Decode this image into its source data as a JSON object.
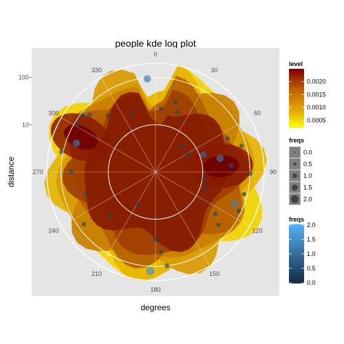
{
  "chart_data": {
    "type": "polar-density",
    "title": "people kde log plot",
    "xlabel": "degrees",
    "ylabel": "distance",
    "angle_ticks": [
      "0",
      "30",
      "60",
      "90",
      "120",
      "150",
      "180",
      "210",
      "240",
      "270",
      "300",
      "330"
    ],
    "angle_tick_values": [
      0,
      30,
      60,
      90,
      120,
      150,
      180,
      210,
      240,
      270,
      300,
      330
    ],
    "distance_ticks": [
      "100",
      "10"
    ],
    "distance_tick_values": [
      100,
      10
    ],
    "distance_log_range": [
      0,
      2.3
    ],
    "background": "#e5e5e5",
    "legends": {
      "level": {
        "title": "level",
        "labels": [
          "0.0020",
          "0.0015",
          "0.0010",
          "0.0005"
        ],
        "values": [
          0.002,
          0.0015,
          0.001,
          0.0005
        ],
        "range": [
          0.0002,
          0.0025
        ],
        "colors": [
          "#7a0000",
          "#c06000",
          "#e0a800",
          "#ffff00"
        ]
      },
      "freqs_size": {
        "title": "freqs",
        "labels": [
          "0.0",
          "0.5",
          "1.0",
          "1.5",
          "2.0"
        ]
      },
      "freqs_color": {
        "title": "freqs",
        "labels": [
          "2.0",
          "1.5",
          "1.0",
          "0.5",
          "0.0"
        ],
        "colors": [
          "#56b1f7",
          "#132b43"
        ]
      }
    },
    "points": [
      {
        "deg": 355,
        "dist": 95,
        "freq": 1.2
      },
      {
        "deg": 5,
        "dist": 22,
        "freq": 0.3
      },
      {
        "deg": 338,
        "dist": 22,
        "freq": 0.3
      },
      {
        "deg": 320,
        "dist": 36,
        "freq": 0.4
      },
      {
        "deg": 311,
        "dist": 70,
        "freq": 0.5
      },
      {
        "deg": 308,
        "dist": 90,
        "freq": 0.4
      },
      {
        "deg": 302,
        "dist": 85,
        "freq": 0.4
      },
      {
        "deg": 290,
        "dist": 60,
        "freq": 1.2
      },
      {
        "deg": 282,
        "dist": 110,
        "freq": 0.4
      },
      {
        "deg": 270,
        "dist": 60,
        "freq": 0.5
      },
      {
        "deg": 252,
        "dist": 35,
        "freq": 0.4
      },
      {
        "deg": 234,
        "dist": 75,
        "freq": 0.4
      },
      {
        "deg": 226,
        "dist": 22,
        "freq": 0.4
      },
      {
        "deg": 210,
        "dist": 6,
        "freq": 0.4
      },
      {
        "deg": 16,
        "dist": 35,
        "freq": 0.4
      },
      {
        "deg": 20,
        "dist": 22,
        "freq": 0.4
      },
      {
        "deg": 45,
        "dist": 6,
        "freq": 0.4
      },
      {
        "deg": 62,
        "dist": 6,
        "freq": 0.4
      },
      {
        "deg": 70,
        "dist": 12,
        "freq": 1.0
      },
      {
        "deg": 78,
        "dist": 25,
        "freq": 1.2
      },
      {
        "deg": 85,
        "dist": 40,
        "freq": 0.5
      },
      {
        "deg": 65,
        "dist": 48,
        "freq": 0.4
      },
      {
        "deg": 73,
        "dist": 80,
        "freq": 0.4
      },
      {
        "deg": 91,
        "dist": 100,
        "freq": 0.4
      },
      {
        "deg": 104,
        "dist": 85,
        "freq": 0.4
      },
      {
        "deg": 112,
        "dist": 63,
        "freq": 1.3
      },
      {
        "deg": 115,
        "dist": 88,
        "freq": 0.4
      },
      {
        "deg": 125,
        "dist": 35,
        "freq": 0.4
      },
      {
        "deg": 130,
        "dist": 55,
        "freq": 0.4
      },
      {
        "deg": 98,
        "dist": 11,
        "freq": 0.4
      },
      {
        "deg": 108,
        "dist": 13,
        "freq": 0.4
      },
      {
        "deg": 180,
        "dist": 27,
        "freq": 0.4
      },
      {
        "deg": 176,
        "dist": 50,
        "freq": 0.4
      },
      {
        "deg": 173,
        "dist": 100,
        "freq": 0.5
      },
      {
        "deg": 183,
        "dist": 125,
        "freq": 1.5
      }
    ],
    "density_bands": [
      {
        "level": 0.0003,
        "color": "#f2d200",
        "ring_dist": 120
      },
      {
        "level": 0.0006,
        "color": "#e6b400",
        "ring_dist": 105
      },
      {
        "level": 0.0009,
        "color": "#d99a00",
        "ring_dist": 90
      },
      {
        "level": 0.0012,
        "color": "#c98000",
        "ring_dist": 75
      },
      {
        "level": 0.0015,
        "color": "#b56000",
        "ring_dist": 60
      },
      {
        "level": 0.0018,
        "color": "#9e3f00",
        "ring_dist": 45
      },
      {
        "level": 0.0021,
        "color": "#861c00",
        "ring_dist": 32
      }
    ],
    "hot_spots": [
      {
        "deg": 295,
        "dist": 55,
        "peak": 0.0023
      },
      {
        "deg": 85,
        "dist": 25,
        "peak": 0.0024
      }
    ]
  }
}
